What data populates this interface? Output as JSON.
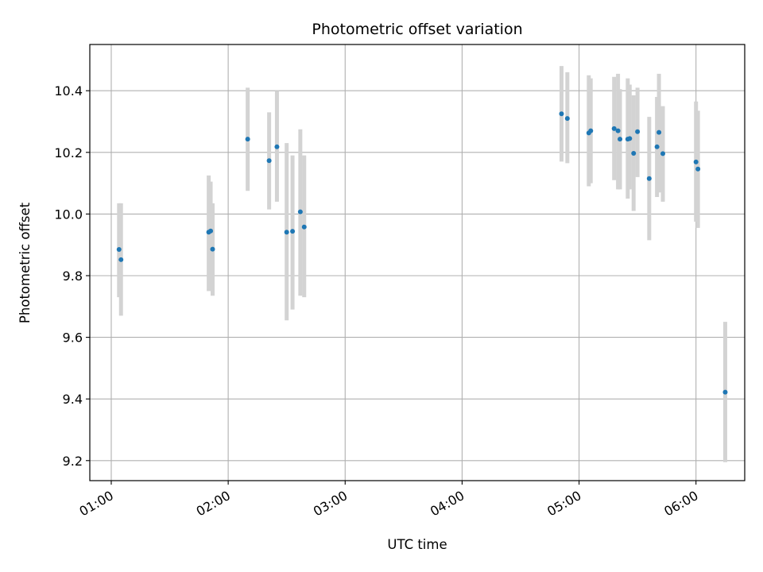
{
  "chart_data": {
    "type": "scatter",
    "title": "Photometric offset variation",
    "xlabel": "UTC time",
    "ylabel": "Photometric offset",
    "x_axis_kind": "time",
    "xlim": [
      "00:49",
      "06:25"
    ],
    "ylim": [
      9.135,
      10.55
    ],
    "xticks": [
      "01:00",
      "02:00",
      "03:00",
      "04:00",
      "05:00",
      "06:00"
    ],
    "yticks": [
      9.2,
      9.4,
      9.6,
      9.8,
      10.0,
      10.2,
      10.4
    ],
    "ytick_labels": [
      "9.2",
      "9.4",
      "9.6",
      "9.8",
      "10.0",
      "10.2",
      "10.4"
    ],
    "grid": true,
    "marker_color": "#1f77b4",
    "errorbar_color": "#d3d3d3",
    "points": [
      {
        "x": "01:04",
        "y": 9.885,
        "err_low": 9.73,
        "err_high": 10.035
      },
      {
        "x": "01:05",
        "y": 9.852,
        "err_low": 9.67,
        "err_high": 10.035
      },
      {
        "x": "01:50",
        "y": 9.941,
        "err_low": 9.75,
        "err_high": 10.125
      },
      {
        "x": "01:51",
        "y": 9.945,
        "err_low": 9.76,
        "err_high": 10.105
      },
      {
        "x": "01:52",
        "y": 9.886,
        "err_low": 9.735,
        "err_high": 10.035
      },
      {
        "x": "02:10",
        "y": 10.243,
        "err_low": 10.075,
        "err_high": 10.41
      },
      {
        "x": "02:21",
        "y": 10.173,
        "err_low": 10.015,
        "err_high": 10.33
      },
      {
        "x": "02:25",
        "y": 10.218,
        "err_low": 10.04,
        "err_high": 10.4
      },
      {
        "x": "02:30",
        "y": 9.941,
        "err_low": 9.655,
        "err_high": 10.23
      },
      {
        "x": "02:33",
        "y": 9.944,
        "err_low": 9.69,
        "err_high": 10.19
      },
      {
        "x": "02:37",
        "y": 10.007,
        "err_low": 9.735,
        "err_high": 10.275
      },
      {
        "x": "02:39",
        "y": 9.958,
        "err_low": 9.73,
        "err_high": 10.19
      },
      {
        "x": "04:51",
        "y": 10.325,
        "err_low": 10.17,
        "err_high": 10.48
      },
      {
        "x": "04:54",
        "y": 10.31,
        "err_low": 10.165,
        "err_high": 10.46
      },
      {
        "x": "05:05",
        "y": 10.263,
        "err_low": 10.09,
        "err_high": 10.45
      },
      {
        "x": "05:06",
        "y": 10.27,
        "err_low": 10.1,
        "err_high": 10.44
      },
      {
        "x": "05:18",
        "y": 10.277,
        "err_low": 10.11,
        "err_high": 10.445
      },
      {
        "x": "05:20",
        "y": 10.27,
        "err_low": 10.08,
        "err_high": 10.455
      },
      {
        "x": "05:21",
        "y": 10.243,
        "err_low": 10.08,
        "err_high": 10.405
      },
      {
        "x": "05:25",
        "y": 10.243,
        "err_low": 10.05,
        "err_high": 10.44
      },
      {
        "x": "05:26",
        "y": 10.245,
        "err_low": 10.08,
        "err_high": 10.42
      },
      {
        "x": "05:28",
        "y": 10.197,
        "err_low": 10.01,
        "err_high": 10.385
      },
      {
        "x": "05:30",
        "y": 10.267,
        "err_low": 10.12,
        "err_high": 10.41
      },
      {
        "x": "05:36",
        "y": 10.115,
        "err_low": 9.915,
        "err_high": 10.315
      },
      {
        "x": "05:40",
        "y": 10.218,
        "err_low": 10.055,
        "err_high": 10.38
      },
      {
        "x": "05:41",
        "y": 10.265,
        "err_low": 10.07,
        "err_high": 10.455
      },
      {
        "x": "05:43",
        "y": 10.196,
        "err_low": 10.04,
        "err_high": 10.35
      },
      {
        "x": "06:00",
        "y": 10.169,
        "err_low": 9.975,
        "err_high": 10.365
      },
      {
        "x": "06:01",
        "y": 10.146,
        "err_low": 9.955,
        "err_high": 10.335
      },
      {
        "x": "06:15",
        "y": 9.422,
        "err_low": 9.195,
        "err_high": 9.65
      }
    ]
  }
}
